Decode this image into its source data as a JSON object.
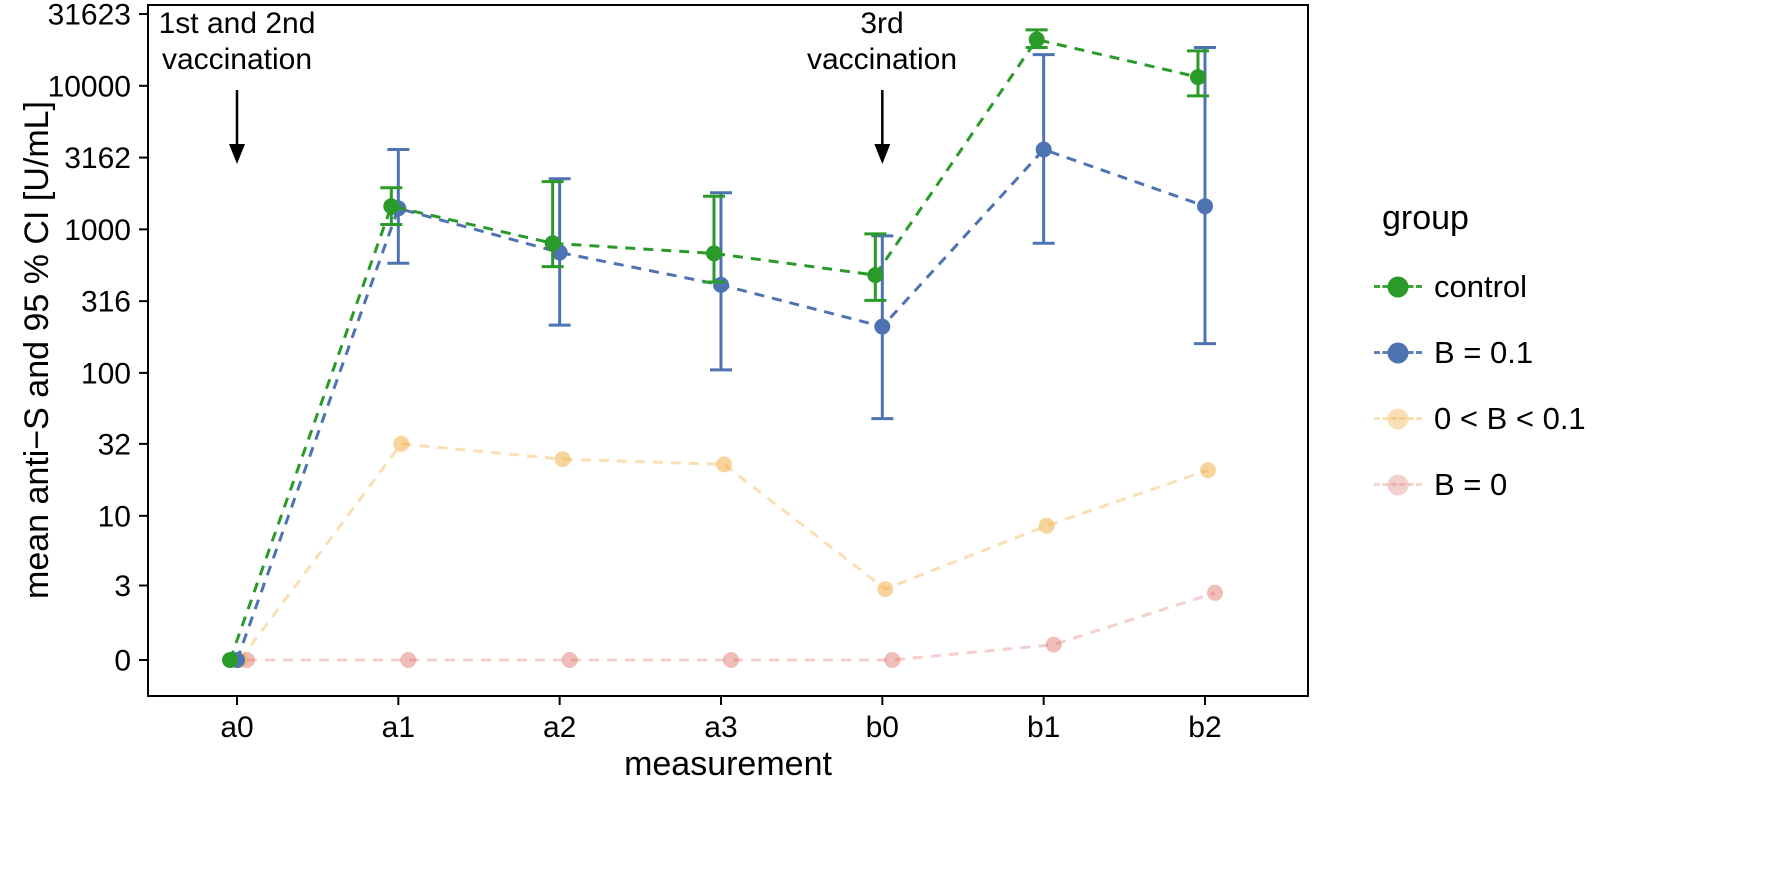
{
  "chart_data": {
    "type": "line",
    "title": "",
    "xlabel": "measurement",
    "ylabel": "mean anti−S and 95 % CI [U/mL]",
    "legend_title": "group",
    "legend_position": "right",
    "grid": false,
    "x_categories": [
      "a0",
      "a1",
      "a2",
      "a3",
      "b0",
      "b1",
      "b2"
    ],
    "y_scale": "pseudo-log base 10",
    "y_ticks": [
      0,
      3,
      10,
      32,
      100,
      316,
      1000,
      3162,
      10000,
      31623
    ],
    "ylim": [
      0,
      31623
    ],
    "series": [
      {
        "name": "control",
        "color": "#2a9b28",
        "opacity": 1,
        "values": [
          0,
          1450,
          800,
          680,
          480,
          21000,
          11500
        ],
        "ci_low": [
          null,
          1080,
          550,
          430,
          320,
          18500,
          8500
        ],
        "ci_high": [
          null,
          1950,
          2150,
          1700,
          930,
          24500,
          17500
        ]
      },
      {
        "name": "B = 0.1",
        "color": "#4e73b2",
        "opacity": 1,
        "values": [
          0,
          1400,
          690,
          410,
          210,
          3600,
          1450
        ],
        "ci_low": [
          null,
          580,
          215,
          105,
          48,
          800,
          160
        ],
        "ci_high": [
          null,
          3600,
          2250,
          1800,
          900,
          16500,
          18500
        ]
      },
      {
        "name": "0 < B < 0.1",
        "color": "#f2a93b",
        "opacity": 0.38,
        "values": [
          0,
          32,
          25,
          23,
          2.8,
          8.5,
          21
        ],
        "ci_low": null,
        "ci_high": null
      },
      {
        "name": "B = 0",
        "color": "#d96459",
        "opacity": 0.3,
        "values": [
          0,
          0,
          0,
          0,
          0,
          0.5,
          2.6
        ],
        "ci_low": null,
        "ci_high": null
      }
    ],
    "annotations": [
      {
        "lines": [
          "1st and 2nd",
          "vaccination"
        ],
        "x_category": "a0"
      },
      {
        "lines": [
          "3rd",
          "vaccination"
        ],
        "x_category": "b0"
      }
    ]
  }
}
